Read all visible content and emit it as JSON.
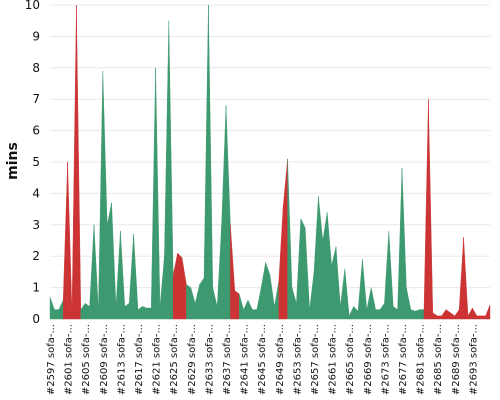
{
  "chart_data": {
    "type": "area",
    "title": "",
    "xlabel": "",
    "ylabel": "mins",
    "ylim": [
      0,
      10
    ],
    "yticks": [
      0,
      1,
      2,
      3,
      4,
      5,
      6,
      7,
      8,
      9,
      10
    ],
    "grid": "horizontal",
    "colors": {
      "success": "#3d9970",
      "failure": "#cc3333"
    },
    "xtick_labels": [
      "#2597 sofa-...",
      "#2601 sofa-...",
      "#2605 sofa-...",
      "#2609 sofa-...",
      "#2613 sofa-...",
      "#2617 sofa-...",
      "#2621 sofa-...",
      "#2625 sofa-...",
      "#2629 sofa-...",
      "#2633 sofa-...",
      "#2637 sofa-...",
      "#2641 sofa-...",
      "#2645 sofa-...",
      "#2649 sofa-...",
      "#2653 sofa-...",
      "#2657 sofa-...",
      "#2661 sofa-...",
      "#2665 sofa-...",
      "#2669 sofa-...",
      "#2673 sofa-...",
      "#2677 sofa-...",
      "#2681 sofa-...",
      "#2685 sofa-...",
      "#2689 sofa-...",
      "#2693 sofa-..."
    ],
    "x": [
      2597,
      2598,
      2599,
      2600,
      2601,
      2602,
      2603,
      2604,
      2605,
      2606,
      2607,
      2608,
      2609,
      2610,
      2611,
      2612,
      2613,
      2614,
      2615,
      2616,
      2617,
      2618,
      2619,
      2620,
      2621,
      2622,
      2623,
      2624,
      2625,
      2626,
      2627,
      2628,
      2629,
      2630,
      2631,
      2632,
      2633,
      2634,
      2635,
      2636,
      2637,
      2638,
      2639,
      2640,
      2641,
      2642,
      2643,
      2644,
      2645,
      2646,
      2647,
      2648,
      2649,
      2650,
      2651,
      2652,
      2653,
      2654,
      2655,
      2656,
      2657,
      2658,
      2659,
      2660,
      2661,
      2662,
      2663,
      2664,
      2665,
      2666,
      2667,
      2668,
      2669,
      2670,
      2671,
      2672,
      2673,
      2674,
      2675,
      2676,
      2677,
      2678,
      2679,
      2680,
      2681,
      2682,
      2683,
      2684,
      2685,
      2686,
      2687,
      2688,
      2689,
      2690,
      2691,
      2692,
      2693,
      2694,
      2695,
      2696,
      2697
    ],
    "values": [
      0.7,
      0.3,
      0.3,
      0.6,
      5.0,
      0.2,
      10.0,
      0.3,
      0.5,
      0.4,
      3.0,
      0.3,
      7.9,
      3.0,
      3.7,
      0.4,
      2.8,
      0.4,
      0.5,
      2.7,
      0.3,
      0.4,
      0.35,
      0.35,
      8.0,
      0.4,
      2.0,
      9.5,
      1.4,
      2.1,
      1.95,
      1.1,
      1.0,
      0.5,
      1.1,
      1.3,
      10.0,
      1.0,
      0.4,
      3.0,
      6.8,
      3.0,
      0.9,
      0.8,
      0.3,
      0.6,
      0.3,
      0.3,
      1.0,
      1.8,
      1.4,
      0.4,
      1.2,
      3.6,
      5.1,
      1.0,
      0.5,
      3.2,
      2.9,
      0.3,
      1.5,
      3.9,
      2.5,
      3.4,
      1.7,
      2.3,
      0.4,
      1.6,
      0.1,
      0.4,
      0.25,
      1.9,
      0.3,
      1.0,
      0.3,
      0.3,
      0.5,
      2.8,
      0.4,
      0.3,
      4.8,
      1.0,
      0.3,
      0.25,
      0.3,
      0.3,
      7.0,
      0.2,
      0.1,
      0.1,
      0.3,
      0.2,
      0.1,
      0.3,
      2.6,
      0.1,
      0.35,
      0.1,
      0.1,
      0.1,
      0.45
    ],
    "status": [
      "S",
      "S",
      "S",
      "S",
      "F",
      "S",
      "F",
      "S",
      "S",
      "S",
      "S",
      "S",
      "S",
      "S",
      "S",
      "S",
      "S",
      "S",
      "S",
      "S",
      "S",
      "S",
      "S",
      "S",
      "S",
      "S",
      "S",
      "S",
      "S",
      "F",
      "F",
      "S",
      "S",
      "S",
      "S",
      "S",
      "S",
      "S",
      "S",
      "S",
      "S",
      "S",
      "F",
      "S",
      "S",
      "S",
      "S",
      "S",
      "S",
      "S",
      "S",
      "S",
      "S",
      "F",
      "S",
      "S",
      "S",
      "S",
      "S",
      "S",
      "S",
      "S",
      "S",
      "S",
      "S",
      "S",
      "S",
      "S",
      "S",
      "S",
      "S",
      "S",
      "S",
      "S",
      "S",
      "S",
      "S",
      "S",
      "S",
      "S",
      "S",
      "S",
      "S",
      "S",
      "S",
      "S",
      "F",
      "F",
      "F",
      "F",
      "F",
      "F",
      "F",
      "F",
      "F",
      "F",
      "F",
      "F",
      "F",
      "F",
      "S"
    ]
  }
}
